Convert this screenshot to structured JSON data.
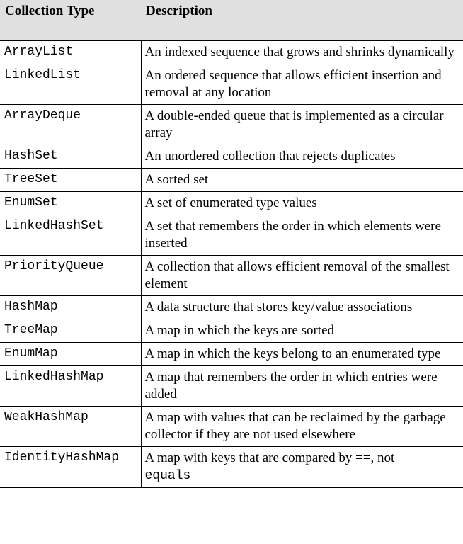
{
  "table": {
    "headers": {
      "type": "Collection Type",
      "description": "Description"
    },
    "rows": [
      {
        "type": "ArrayList",
        "description": "An indexed sequence that grows and shrinks dynamically"
      },
      {
        "type": "LinkedList",
        "description": "An ordered sequence that allows efficient insertion and removal at any location"
      },
      {
        "type": "ArrayDeque",
        "description": "A double-ended queue that is implemented as a circular array"
      },
      {
        "type": "HashSet",
        "description": "An unordered collection that rejects duplicates"
      },
      {
        "type": "TreeSet",
        "description": "A sorted set"
      },
      {
        "type": "EnumSet",
        "description": "A set of enumerated type values"
      },
      {
        "type": "LinkedHashSet",
        "description": "A set that remembers the order in which elements were inserted"
      },
      {
        "type": "PriorityQueue",
        "description": "A collection that allows efficient removal of the smallest element"
      },
      {
        "type": "HashMap",
        "description": "A data structure that stores key/value associations"
      },
      {
        "type": "TreeMap",
        "description": "A map in which the keys are sorted"
      },
      {
        "type": "EnumMap",
        "description": "A map in which the keys belong to an enumerated type"
      },
      {
        "type": "LinkedHashMap",
        "description": "A map that remembers the order in which entries were added"
      },
      {
        "type": "WeakHashMap",
        "description": "A map with values that can be reclaimed by the garbage collector if they are not used elsewhere"
      },
      {
        "type": "IdentityHashMap",
        "description": "A map with keys that are compared by ==, not",
        "description_code": "equals"
      }
    ]
  }
}
